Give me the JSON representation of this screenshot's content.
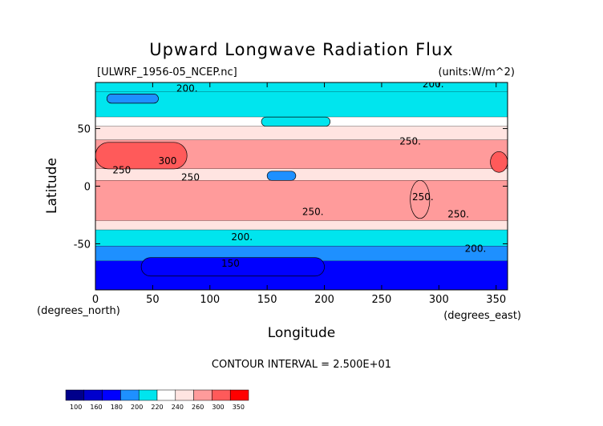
{
  "chart_data": {
    "type": "heatmap",
    "title": "Upward Longwave Radiation Flux",
    "source_label": "[ULWRF_1956-05_NCEP.nc]",
    "units_label": "(units:W/m^2)",
    "xlabel": "Longitude",
    "ylabel": "Latitude",
    "x_unit_label": "(degrees_east)",
    "y_unit_label": "(degrees_north)",
    "xlim": [
      0,
      360
    ],
    "ylim": [
      -90,
      90
    ],
    "x_ticks": [
      "0",
      "50",
      "100",
      "150",
      "200",
      "250",
      "300",
      "350"
    ],
    "y_ticks": [
      "50",
      "0",
      "-50"
    ],
    "contour_interval_text": "CONTOUR INTERVAL = 2.500E+01",
    "contour_labels": [
      {
        "text": "200.",
        "lon": 80,
        "lat": 82
      },
      {
        "text": "200.",
        "lon": 295,
        "lat": 86
      },
      {
        "text": "300",
        "lon": 63,
        "lat": 19
      },
      {
        "text": "250",
        "lon": 23,
        "lat": 11
      },
      {
        "text": "250",
        "lon": 83,
        "lat": 5
      },
      {
        "text": "250.",
        "lon": 275,
        "lat": 36
      },
      {
        "text": "250.",
        "lon": 190,
        "lat": -25
      },
      {
        "text": "250.",
        "lon": 317,
        "lat": -27
      },
      {
        "text": "250.",
        "lon": 286,
        "lat": -12
      },
      {
        "text": "200.",
        "lon": 128,
        "lat": -47
      },
      {
        "text": "200.",
        "lon": 332,
        "lat": -57
      },
      {
        "text": "150",
        "lon": 118,
        "lat": -70
      }
    ],
    "colorbar": {
      "levels": [
        "100",
        "160",
        "180",
        "200",
        "220",
        "240",
        "260",
        "300",
        "350"
      ],
      "colors": [
        "#00008b",
        "#0000cd",
        "#0000ff",
        "#1e90ff",
        "#00e5ee",
        "#ffffff",
        "#ffe4e1",
        "#ff9b9b",
        "#ff5a5a",
        "#ff0000"
      ]
    },
    "zonal_bands": [
      {
        "lat_from": 90,
        "lat_to": 82,
        "value": 205
      },
      {
        "lat_from": 82,
        "lat_to": 60,
        "value": 212
      },
      {
        "lat_from": 60,
        "lat_to": 52,
        "value": 232
      },
      {
        "lat_from": 52,
        "lat_to": 40,
        "value": 255
      },
      {
        "lat_from": 40,
        "lat_to": 15,
        "value": 275
      },
      {
        "lat_from": 15,
        "lat_to": 5,
        "value": 245
      },
      {
        "lat_from": 5,
        "lat_to": -30,
        "value": 270
      },
      {
        "lat_from": -30,
        "lat_to": -38,
        "value": 240
      },
      {
        "lat_from": -38,
        "lat_to": -52,
        "value": 215
      },
      {
        "lat_from": -52,
        "lat_to": -65,
        "value": 195
      },
      {
        "lat_from": -65,
        "lat_to": -90,
        "value": 160
      }
    ],
    "features": [
      {
        "lon_from": 0,
        "lon_to": 80,
        "lat_from": 38,
        "lat_to": 15,
        "value": 320
      },
      {
        "lon_from": 345,
        "lon_to": 360,
        "lat_from": 30,
        "lat_to": 12,
        "value": 310
      },
      {
        "lon_from": 150,
        "lon_to": 175,
        "lat_from": 13,
        "lat_to": 5,
        "value": 185
      },
      {
        "lon_from": 275,
        "lon_to": 292,
        "lat_from": 5,
        "lat_to": -28,
        "value": 280
      },
      {
        "lon_from": 10,
        "lon_to": 55,
        "lat_from": 80,
        "lat_to": 72,
        "value": 195
      },
      {
        "lon_from": 145,
        "lon_to": 205,
        "lat_from": 60,
        "lat_to": 52,
        "value": 205
      },
      {
        "lon_from": 40,
        "lon_to": 200,
        "lat_from": -62,
        "lat_to": -78,
        "value": 165
      }
    ]
  }
}
